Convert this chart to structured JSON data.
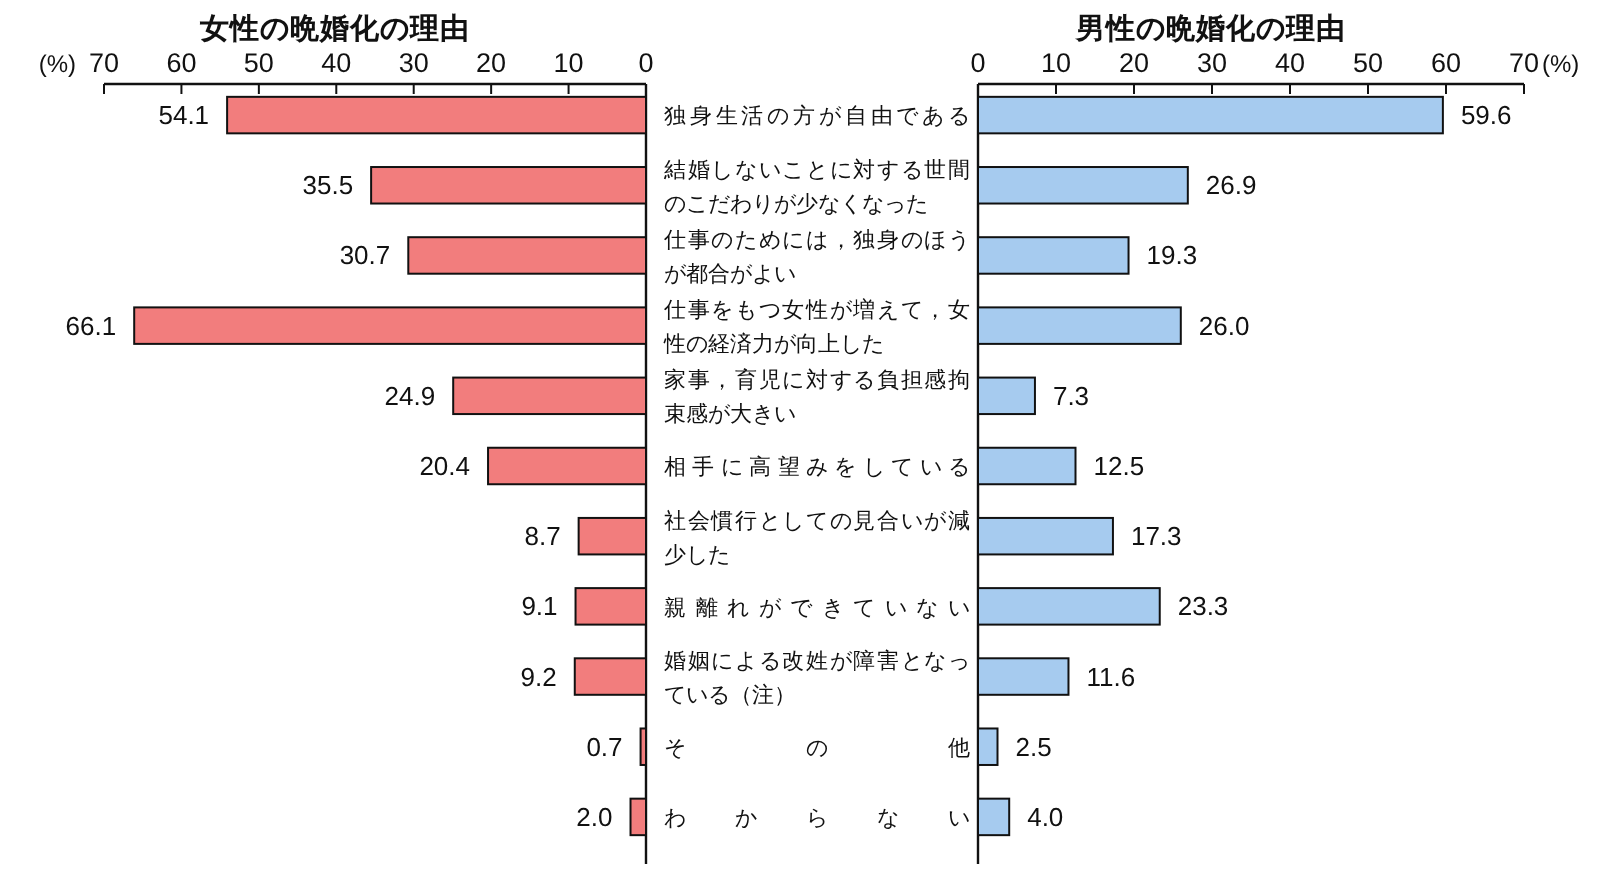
{
  "chart_data": [
    {
      "type": "bar",
      "orientation": "horizontal",
      "title": "女性の晩婚化の理由",
      "xlabel": "(%)",
      "categories": [
        "独身生活の方が自由である",
        "結婚しないことに対する世間のこだわりが少なくなった",
        "仕事のためには，独身のほうが都合がよい",
        "仕事をもつ女性が増えて，女性の経済力が向上した",
        "家事，育児に対する負担感拘束感が大きい",
        "相手に高望みをしている",
        "社会慣行としての見合いが減少した",
        "親離れができていない",
        "婚姻による改姓が障害となっている（注）",
        "その他",
        "わからない"
      ],
      "values": [
        54.1,
        35.5,
        30.7,
        66.1,
        24.9,
        20.4,
        8.7,
        9.1,
        9.2,
        0.7,
        2.0
      ],
      "value_labels": [
        "54.1",
        "35.5",
        "30.7",
        "66.1",
        "24.9",
        "20.4",
        "8.7",
        "9.1",
        "9.2",
        "0.7",
        "2.0"
      ],
      "color": "#f27d7d",
      "xlim": [
        70,
        0
      ],
      "xticks": [
        70,
        60,
        50,
        40,
        30,
        20,
        10,
        0
      ]
    },
    {
      "type": "bar",
      "orientation": "horizontal",
      "title": "男性の晩婚化の理由",
      "xlabel": "(%)",
      "categories": [
        null,
        null,
        null,
        null,
        null,
        null,
        null,
        null,
        null,
        null,
        null
      ],
      "values": [
        59.6,
        26.9,
        19.3,
        26.0,
        7.3,
        12.5,
        17.3,
        23.3,
        11.6,
        2.5,
        4.0
      ],
      "value_labels": [
        "59.6",
        "26.9",
        "19.3",
        "26.0",
        "7.3",
        "12.5",
        "17.3",
        "23.3",
        "11.6",
        "2.5",
        "4.0"
      ],
      "color": "#a6cbef",
      "xlim": [
        0,
        70
      ],
      "xticks": [
        0,
        10,
        20,
        30,
        40,
        50,
        60,
        70
      ]
    }
  ]
}
